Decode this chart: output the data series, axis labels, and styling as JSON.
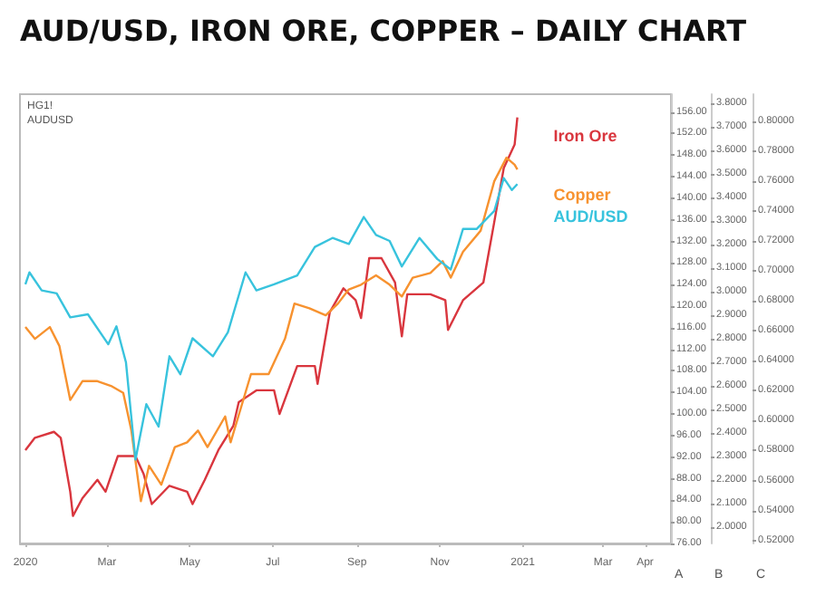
{
  "chart_data": {
    "type": "line",
    "title": "AUD/USD, IRON ORE, COPPER – DAILY CHART",
    "annotations": [
      "HG1!",
      "AUDUSD"
    ],
    "ylabel": "A",
    "y2label": "B",
    "y3label": "C",
    "xlim": [
      "2019-12-28",
      "2021-04-20"
    ],
    "xticks": [
      {
        "value": "2020-01-01",
        "label": "2020"
      },
      {
        "value": "2020-03-01",
        "label": "Mar"
      },
      {
        "value": "2020-05-01",
        "label": "May"
      },
      {
        "value": "2020-07-01",
        "label": "Jul"
      },
      {
        "value": "2020-09-01",
        "label": "Sep"
      },
      {
        "value": "2020-11-01",
        "label": "Nov"
      },
      {
        "value": "2021-01-01",
        "label": "2021"
      },
      {
        "value": "2021-03-01",
        "label": "Mar"
      },
      {
        "value": "2021-04-01",
        "label": "Apr"
      }
    ],
    "ylim": [
      76,
      159.3
    ],
    "yticks": [
      {
        "value": 76,
        "label": "76.00"
      },
      {
        "value": 80,
        "label": "80.00"
      },
      {
        "value": 84,
        "label": "84.00"
      },
      {
        "value": 88,
        "label": "88.00"
      },
      {
        "value": 92,
        "label": "92.00"
      },
      {
        "value": 96,
        "label": "96.00"
      },
      {
        "value": 100,
        "label": "100.00"
      },
      {
        "value": 104,
        "label": "104.00"
      },
      {
        "value": 108,
        "label": "108.00"
      },
      {
        "value": 112,
        "label": "112.00"
      },
      {
        "value": 116,
        "label": "116.00"
      },
      {
        "value": 120,
        "label": "120.00"
      },
      {
        "value": 124,
        "label": "124.00"
      },
      {
        "value": 128,
        "label": "128.00"
      },
      {
        "value": 132,
        "label": "132.00"
      },
      {
        "value": 136,
        "label": "136.00"
      },
      {
        "value": 140,
        "label": "140.00"
      },
      {
        "value": 144,
        "label": "144.00"
      },
      {
        "value": 148,
        "label": "148.00"
      },
      {
        "value": 152,
        "label": "152.00"
      },
      {
        "value": 156,
        "label": "156.00"
      }
    ],
    "y2lim": [
      1.93,
      3.84
    ],
    "y2ticks": [
      {
        "value": 2.0,
        "label": "2.0000"
      },
      {
        "value": 2.1,
        "label": "2.1000"
      },
      {
        "value": 2.2,
        "label": "2.2000"
      },
      {
        "value": 2.3,
        "label": "2.3000"
      },
      {
        "value": 2.4,
        "label": "2.4000"
      },
      {
        "value": 2.5,
        "label": "2.5000"
      },
      {
        "value": 2.6,
        "label": "2.6000"
      },
      {
        "value": 2.7,
        "label": "2.7000"
      },
      {
        "value": 2.8,
        "label": "2.8000"
      },
      {
        "value": 2.9,
        "label": "2.9000"
      },
      {
        "value": 3.0,
        "label": "3.0000"
      },
      {
        "value": 3.1,
        "label": "3.1000"
      },
      {
        "value": 3.2,
        "label": "3.2000"
      },
      {
        "value": 3.3,
        "label": "3.3000"
      },
      {
        "value": 3.4,
        "label": "3.4000"
      },
      {
        "value": 3.5,
        "label": "3.5000"
      },
      {
        "value": 3.6,
        "label": "3.6000"
      },
      {
        "value": 3.7,
        "label": "3.7000"
      },
      {
        "value": 3.8,
        "label": "3.8000"
      }
    ],
    "y3lim": [
      0.518,
      0.818
    ],
    "y3ticks": [
      {
        "value": 0.52,
        "label": "0.52000"
      },
      {
        "value": 0.54,
        "label": "0.54000"
      },
      {
        "value": 0.56,
        "label": "0.56000"
      },
      {
        "value": 0.58,
        "label": "0.58000"
      },
      {
        "value": 0.6,
        "label": "0.60000"
      },
      {
        "value": 0.62,
        "label": "0.62000"
      },
      {
        "value": 0.64,
        "label": "0.64000"
      },
      {
        "value": 0.66,
        "label": "0.66000"
      },
      {
        "value": 0.68,
        "label": "0.68000"
      },
      {
        "value": 0.7,
        "label": "0.70000"
      },
      {
        "value": 0.72,
        "label": "0.72000"
      },
      {
        "value": 0.74,
        "label": "0.74000"
      },
      {
        "value": 0.76,
        "label": "0.76000"
      },
      {
        "value": 0.78,
        "label": "0.78000"
      },
      {
        "value": 0.8,
        "label": "0.80000"
      }
    ],
    "series": [
      {
        "name": "Iron Ore",
        "color": "#d9363e",
        "axis": "y",
        "x": [
          "2020-01-01",
          "2020-01-08",
          "2020-01-22",
          "2020-01-27",
          "2020-02-03",
          "2020-02-05",
          "2020-02-12",
          "2020-02-23",
          "2020-02-29",
          "2020-03-09",
          "2020-03-22",
          "2020-03-28",
          "2020-04-03",
          "2020-04-16",
          "2020-04-29",
          "2020-05-03",
          "2020-05-12",
          "2020-05-22",
          "2020-06-02",
          "2020-06-06",
          "2020-06-19",
          "2020-07-02",
          "2020-07-06",
          "2020-07-19",
          "2020-08-01",
          "2020-08-03",
          "2020-08-12",
          "2020-08-22",
          "2020-08-31",
          "2020-09-04",
          "2020-09-10",
          "2020-09-19",
          "2020-09-29",
          "2020-10-04",
          "2020-10-08",
          "2020-10-25",
          "2020-11-05",
          "2020-11-07",
          "2020-11-18",
          "2020-12-03",
          "2020-12-11",
          "2020-12-18",
          "2020-12-26",
          "2020-12-28"
        ],
        "values": [
          93.3,
          95.6,
          96.7,
          95.6,
          85.6,
          81.1,
          84.4,
          87.8,
          85.6,
          92.2,
          92.2,
          88.9,
          83.3,
          86.7,
          85.6,
          83.3,
          87.8,
          93.3,
          97.8,
          102.2,
          104.4,
          104.4,
          100,
          108.9,
          108.9,
          105.6,
          118.9,
          123.3,
          121.1,
          117.8,
          128.9,
          128.9,
          124.4,
          114.4,
          122.2,
          122.2,
          121.1,
          115.6,
          121.1,
          124.4,
          135.6,
          145.6,
          150,
          155
        ]
      },
      {
        "name": "Copper",
        "color": "#f7922f",
        "axis": "y2",
        "x": [
          "2020-01-01",
          "2020-01-08",
          "2020-01-19",
          "2020-01-26",
          "2020-02-03",
          "2020-02-12",
          "2020-02-23",
          "2020-03-04",
          "2020-03-13",
          "2020-03-19",
          "2020-03-26",
          "2020-04-01",
          "2020-04-10",
          "2020-04-20",
          "2020-04-29",
          "2020-05-07",
          "2020-05-14",
          "2020-05-27",
          "2020-05-31",
          "2020-06-15",
          "2020-06-28",
          "2020-07-10",
          "2020-07-17",
          "2020-07-28",
          "2020-08-09",
          "2020-08-18",
          "2020-08-26",
          "2020-09-04",
          "2020-09-15",
          "2020-09-25",
          "2020-10-04",
          "2020-10-12",
          "2020-10-25",
          "2020-11-03",
          "2020-11-09",
          "2020-11-18",
          "2020-12-01",
          "2020-12-11",
          "2020-12-20",
          "2020-12-26",
          "2020-12-28"
        ],
        "values": [
          2.85,
          2.8,
          2.85,
          2.77,
          2.54,
          2.62,
          2.62,
          2.6,
          2.57,
          2.41,
          2.11,
          2.26,
          2.18,
          2.34,
          2.36,
          2.41,
          2.34,
          2.47,
          2.36,
          2.65,
          2.65,
          2.8,
          2.95,
          2.93,
          2.9,
          2.95,
          3.01,
          3.03,
          3.07,
          3.03,
          2.98,
          3.06,
          3.08,
          3.13,
          3.06,
          3.17,
          3.26,
          3.47,
          3.57,
          3.54,
          3.52
        ]
      },
      {
        "name": "AUD/USD",
        "color": "#38c3dd",
        "axis": "y3",
        "x": [
          "2020-01-01",
          "2020-01-04",
          "2020-01-13",
          "2020-01-24",
          "2020-02-03",
          "2020-02-16",
          "2020-03-02",
          "2020-03-08",
          "2020-03-15",
          "2020-03-22",
          "2020-03-30",
          "2020-04-08",
          "2020-04-16",
          "2020-04-24",
          "2020-05-03",
          "2020-05-18",
          "2020-05-29",
          "2020-06-11",
          "2020-06-19",
          "2020-07-02",
          "2020-07-19",
          "2020-08-01",
          "2020-08-14",
          "2020-08-26",
          "2020-09-06",
          "2020-09-15",
          "2020-09-25",
          "2020-10-04",
          "2020-10-17",
          "2020-10-30",
          "2020-11-09",
          "2020-11-18",
          "2020-11-28",
          "2020-12-11",
          "2020-12-18",
          "2020-12-24",
          "2020-12-28"
        ],
        "values": [
          0.691,
          0.699,
          0.687,
          0.685,
          0.669,
          0.671,
          0.651,
          0.663,
          0.639,
          0.574,
          0.611,
          0.596,
          0.643,
          0.631,
          0.655,
          0.643,
          0.659,
          0.699,
          0.687,
          0.691,
          0.697,
          0.716,
          0.722,
          0.718,
          0.736,
          0.724,
          0.72,
          0.703,
          0.722,
          0.708,
          0.701,
          0.728,
          0.728,
          0.74,
          0.762,
          0.754,
          0.758
        ]
      }
    ]
  }
}
